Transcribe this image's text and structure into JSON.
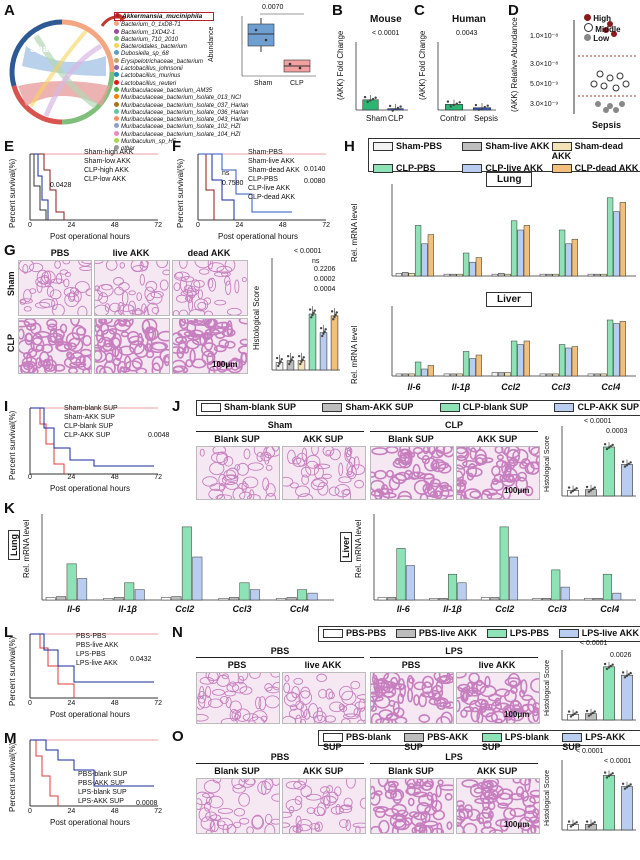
{
  "panels": {
    "A": {
      "label": "A",
      "chord_groups": [
        "Sham",
        "CLP"
      ],
      "taxa": [
        {
          "name": "Akkermansia_muciniphila",
          "color": "#b5202a"
        },
        {
          "name": "Bacterium_0_1xD8-71",
          "color": "#f4a582"
        },
        {
          "name": "Bacterium_1XD42-1",
          "color": "#9e4a9a"
        },
        {
          "name": "Bacterium_710_2010",
          "color": "#7fbf7b"
        },
        {
          "name": "Bacteroidales_bacterium",
          "color": "#f7d35a"
        },
        {
          "name": "Dubosiella_sp_68",
          "color": "#5aa0c8"
        },
        {
          "name": "Erysipelotrichaceae_bacterium",
          "color": "#c7a36a"
        },
        {
          "name": "Lactobacillus_johnsonii",
          "color": "#8c6bb1"
        },
        {
          "name": "Lactobacillus_murinus",
          "color": "#2b8cbe"
        },
        {
          "name": "Lactobacillus_reuteri",
          "color": "#e41a1c"
        },
        {
          "name": "Muribaculaceae_bacterium_AM35",
          "color": "#4daf4a"
        },
        {
          "name": "Muribaculaceae_bacterium_Isolate_013_NCI",
          "color": "#ff7f00"
        },
        {
          "name": "Muribaculaceae_bacterium_Isolate_037_Harlan",
          "color": "#a6761d"
        },
        {
          "name": "Muribaculaceae_bacterium_Isolate_036_Harlan",
          "color": "#66c2a5"
        },
        {
          "name": "Muribaculaceae_bacterium_Isolate_043_Harlan",
          "color": "#fc8d62"
        },
        {
          "name": "Muribaculaceae_bacterium_Isolate_102_HZI",
          "color": "#8da0cb"
        },
        {
          "name": "Muribaculaceae_bacterium_Isolate_104_HZI",
          "color": "#e78ac3"
        },
        {
          "name": "Muribaculum_sp_H5",
          "color": "#a6d854"
        },
        {
          "name": "other",
          "color": "#999999"
        }
      ],
      "inset": {
        "ylabel": "Abundance",
        "pvalue": "0.0070",
        "groups": [
          "Sham",
          "CLP"
        ]
      }
    },
    "B": {
      "label": "B",
      "title": "Mouse",
      "ylabel": "(AKK) Fold Change",
      "pvalue": "< 0.0001",
      "groups": [
        "Sham",
        "CLP"
      ],
      "ticks": [
        "0",
        "5",
        "10",
        "15",
        "20"
      ]
    },
    "C": {
      "label": "C",
      "title": "Human",
      "ylabel": "(AKK) Fold Change",
      "pvalue": "0.0043",
      "groups": [
        "Control",
        "Sepsis"
      ],
      "ticks": [
        "0",
        "10",
        "20",
        "30"
      ]
    },
    "D": {
      "label": "D",
      "ylabel": "(AKK) Relative Abundance",
      "xlabel": "Sepsis",
      "ticks": [
        "1.0×10⁻⁸",
        "3.0×10⁻⁸",
        "5.0×10⁻⁹",
        "3.0×10⁻⁹"
      ],
      "legend": [
        "High",
        "Middle",
        "Low"
      ]
    },
    "E": {
      "label": "E",
      "ylabel": "Percent survival(%)",
      "xlabel": "Post operational hours",
      "xticks": [
        "0",
        "24",
        "48",
        "72"
      ],
      "yticks": [
        "0",
        "50",
        "100"
      ],
      "legend": [
        "Sham-high AKK",
        "Sham-low AKK",
        "CLP-high AKK",
        "CLP-low AKK"
      ],
      "pvalue": "0.0428"
    },
    "F": {
      "label": "F",
      "ylabel": "Percent survival(%)",
      "xlabel": "Post operational hours",
      "xticks": [
        "0",
        "24",
        "48",
        "72"
      ],
      "yticks": [
        "0",
        "50",
        "100"
      ],
      "legend": [
        "Sham-PBS",
        "Sham-live AKK",
        "Sham-dead AKK",
        "CLP-PBS",
        "CLP-live AKK",
        "CLP-dead AKK"
      ],
      "pvalues": [
        "ns",
        "0.7580",
        "0.0140",
        "0.0080"
      ]
    },
    "G": {
      "label": "G",
      "cols": [
        "PBS",
        "live AKK",
        "dead AKK"
      ],
      "rows": [
        "Sham",
        "CLP"
      ],
      "scalebar": "100μm",
      "ylabel": "Histological Score",
      "ticks": [
        "0",
        "2",
        "4",
        "6",
        "8",
        "10",
        "12"
      ],
      "pvalues": [
        "< 0.0001",
        "ns",
        "0.2206",
        "0.0002",
        "0.0004"
      ]
    },
    "H": {
      "label": "H",
      "legend": [
        "Sham-PBS",
        "Sham-live AKK",
        "Sham-dead AKK",
        "CLP-PBS",
        "CLP-live AKK",
        "CLP-dead AKK"
      ],
      "organs": [
        "Lung",
        "Liver"
      ],
      "genes": [
        "Il-6",
        "Il-1β",
        "Ccl2",
        "Ccl3",
        "Ccl4"
      ],
      "ylabel": "Rel. mRNA level",
      "lung_ticks": [
        "0",
        "5",
        "10",
        "50",
        "500",
        "5000"
      ],
      "liver_ticks": [
        "0",
        "5",
        "10",
        "50",
        "500",
        "5000"
      ]
    },
    "I": {
      "label": "I",
      "ylabel": "Percent survival(%)",
      "xlabel": "Post operational hours",
      "xticks": [
        "0",
        "24",
        "48",
        "72"
      ],
      "yticks": [
        "0",
        "50",
        "100"
      ],
      "legend": [
        "Sham-blank SUP",
        "Sham-AKK SUP",
        "CLP-blank SUP",
        "CLP-AKK SUP"
      ],
      "pvalue": "0.0048"
    },
    "J": {
      "label": "J",
      "legend": [
        "Sham-blank SUP",
        "Sham-AKK SUP",
        "CLP-blank SUP",
        "CLP-AKK SUP"
      ],
      "groups": [
        "Sham",
        "CLP"
      ],
      "cols": [
        "Blank SUP",
        "AKK SUP",
        "Blank SUP",
        "AKK SUP"
      ],
      "scalebar": "100μm",
      "ylabel": "Histological Score",
      "ticks": [
        "0",
        "2",
        "4",
        "6",
        "8",
        "10"
      ],
      "pvalues": [
        "< 0.0001",
        "0.0003"
      ]
    },
    "K": {
      "label": "K",
      "organs": [
        "Lung",
        "Liver"
      ],
      "genes": [
        "Il-6",
        "Il-1β",
        "Ccl2",
        "Ccl3",
        "Ccl4"
      ],
      "ylabel": "Rel. mRNA level",
      "lung_ticks": [
        "0",
        "10",
        "20",
        "30",
        "40",
        "100",
        "200",
        "300",
        "400",
        "500"
      ],
      "liver_ticks": [
        "0",
        "50",
        "100",
        "200",
        "400",
        "600",
        "800",
        "1000",
        "1200",
        "1400"
      ]
    },
    "L": {
      "label": "L",
      "ylabel": "Percent survival(%)",
      "xlabel": "Post operational hours",
      "xticks": [
        "0",
        "24",
        "48",
        "72"
      ],
      "yticks": [
        "0",
        "50",
        "100"
      ],
      "legend": [
        "PBS-PBS",
        "PBS-live AKK",
        "LPS-PBS",
        "LPS-live AKK"
      ],
      "pvalue": "0.0432"
    },
    "M": {
      "label": "M",
      "ylabel": "Percent survival(%)",
      "xlabel": "Post operational hours",
      "xticks": [
        "0",
        "24",
        "48",
        "72"
      ],
      "yticks": [
        "0",
        "50",
        "100"
      ],
      "legend": [
        "PBS-blank SUP",
        "PBS-AKK SUP",
        "LPS-blank SUP",
        "LPS-AKK SUP"
      ],
      "pvalue": "0.0008"
    },
    "N": {
      "label": "N",
      "legend": [
        "PBS-PBS",
        "PBS-live AKK",
        "LPS-PBS",
        "LPS-live AKK"
      ],
      "groups": [
        "PBS",
        "LPS"
      ],
      "cols": [
        "PBS",
        "live AKK",
        "PBS",
        "live AKK"
      ],
      "scalebar": "100μm",
      "ylabel": "Histological Score",
      "ticks": [
        "0",
        "2",
        "4",
        "6",
        "8",
        "10"
      ],
      "pvalues": [
        "< 0.0001",
        "0.0026"
      ]
    },
    "O": {
      "label": "O",
      "legend": [
        "PBS-blank SUP",
        "PBS-AKK SUP",
        "LPS-blank SUP",
        "LPS-AKK SUP"
      ],
      "groups": [
        "PBS",
        "LPS"
      ],
      "cols": [
        "Blank SUP",
        "AKK SUP",
        "Blank SUP",
        "AKK SUP"
      ],
      "scalebar": "100μm",
      "ylabel": "Histological Score",
      "ticks": [
        "0",
        "2",
        "4",
        "6",
        "8",
        "10"
      ],
      "pvalues": [
        "< 0.0001",
        "< 0.0001"
      ]
    }
  },
  "colors": {
    "sham": "#f2f2f2",
    "live": "#bdbdbd",
    "dead": "#f1e3b6",
    "clp": "#8de3b5",
    "clp_live": "#b9cdf0",
    "clp_dead": "#f2c07a",
    "green_dot": "#2bb673",
    "blue_dot": "#2f56c4",
    "red": "#e03a3a",
    "tissue": "#e6b8dc"
  },
  "chart_data": [
    {
      "type": "bar",
      "title": "Mouse",
      "ylabel": "(AKK) Fold Change",
      "categories": [
        "Sham",
        "CLP"
      ],
      "values": [
        3.0,
        0.4
      ]
    },
    {
      "type": "bar",
      "title": "Human",
      "ylabel": "(AKK) Fold Change",
      "categories": [
        "Control",
        "Sepsis"
      ],
      "values": [
        2.5,
        1.0
      ]
    },
    {
      "type": "bar",
      "ylabel": "Histological Score",
      "categories": [
        "Sham-PBS",
        "Sham-live AKK",
        "Sham-dead AKK",
        "CLP-PBS",
        "CLP-live AKK",
        "CLP-dead AKK"
      ],
      "values": [
        0.8,
        1.0,
        1.0,
        6.0,
        4.0,
        5.8
      ],
      "ylim": [
        0,
        12
      ]
    },
    {
      "type": "bar",
      "ylabel": "Histological Score",
      "categories": [
        "Sham-blank SUP",
        "Sham-AKK SUP",
        "CLP-blank SUP",
        "CLP-AKK SUP"
      ],
      "values": [
        0.8,
        0.9,
        7.0,
        4.5
      ],
      "ylim": [
        0,
        10
      ]
    },
    {
      "type": "bar",
      "ylabel": "Histological Score",
      "categories": [
        "PBS-PBS",
        "PBS-live AKK",
        "LPS-PBS",
        "LPS-live AKK"
      ],
      "values": [
        0.8,
        0.9,
        7.6,
        6.4
      ],
      "ylim": [
        0,
        10
      ]
    },
    {
      "type": "bar",
      "ylabel": "Histological Score",
      "categories": [
        "PBS-blank SUP",
        "PBS-AKK SUP",
        "LPS-blank SUP",
        "LPS-AKK SUP"
      ],
      "values": [
        0.8,
        0.8,
        7.8,
        6.2
      ],
      "ylim": [
        0,
        10
      ]
    }
  ]
}
